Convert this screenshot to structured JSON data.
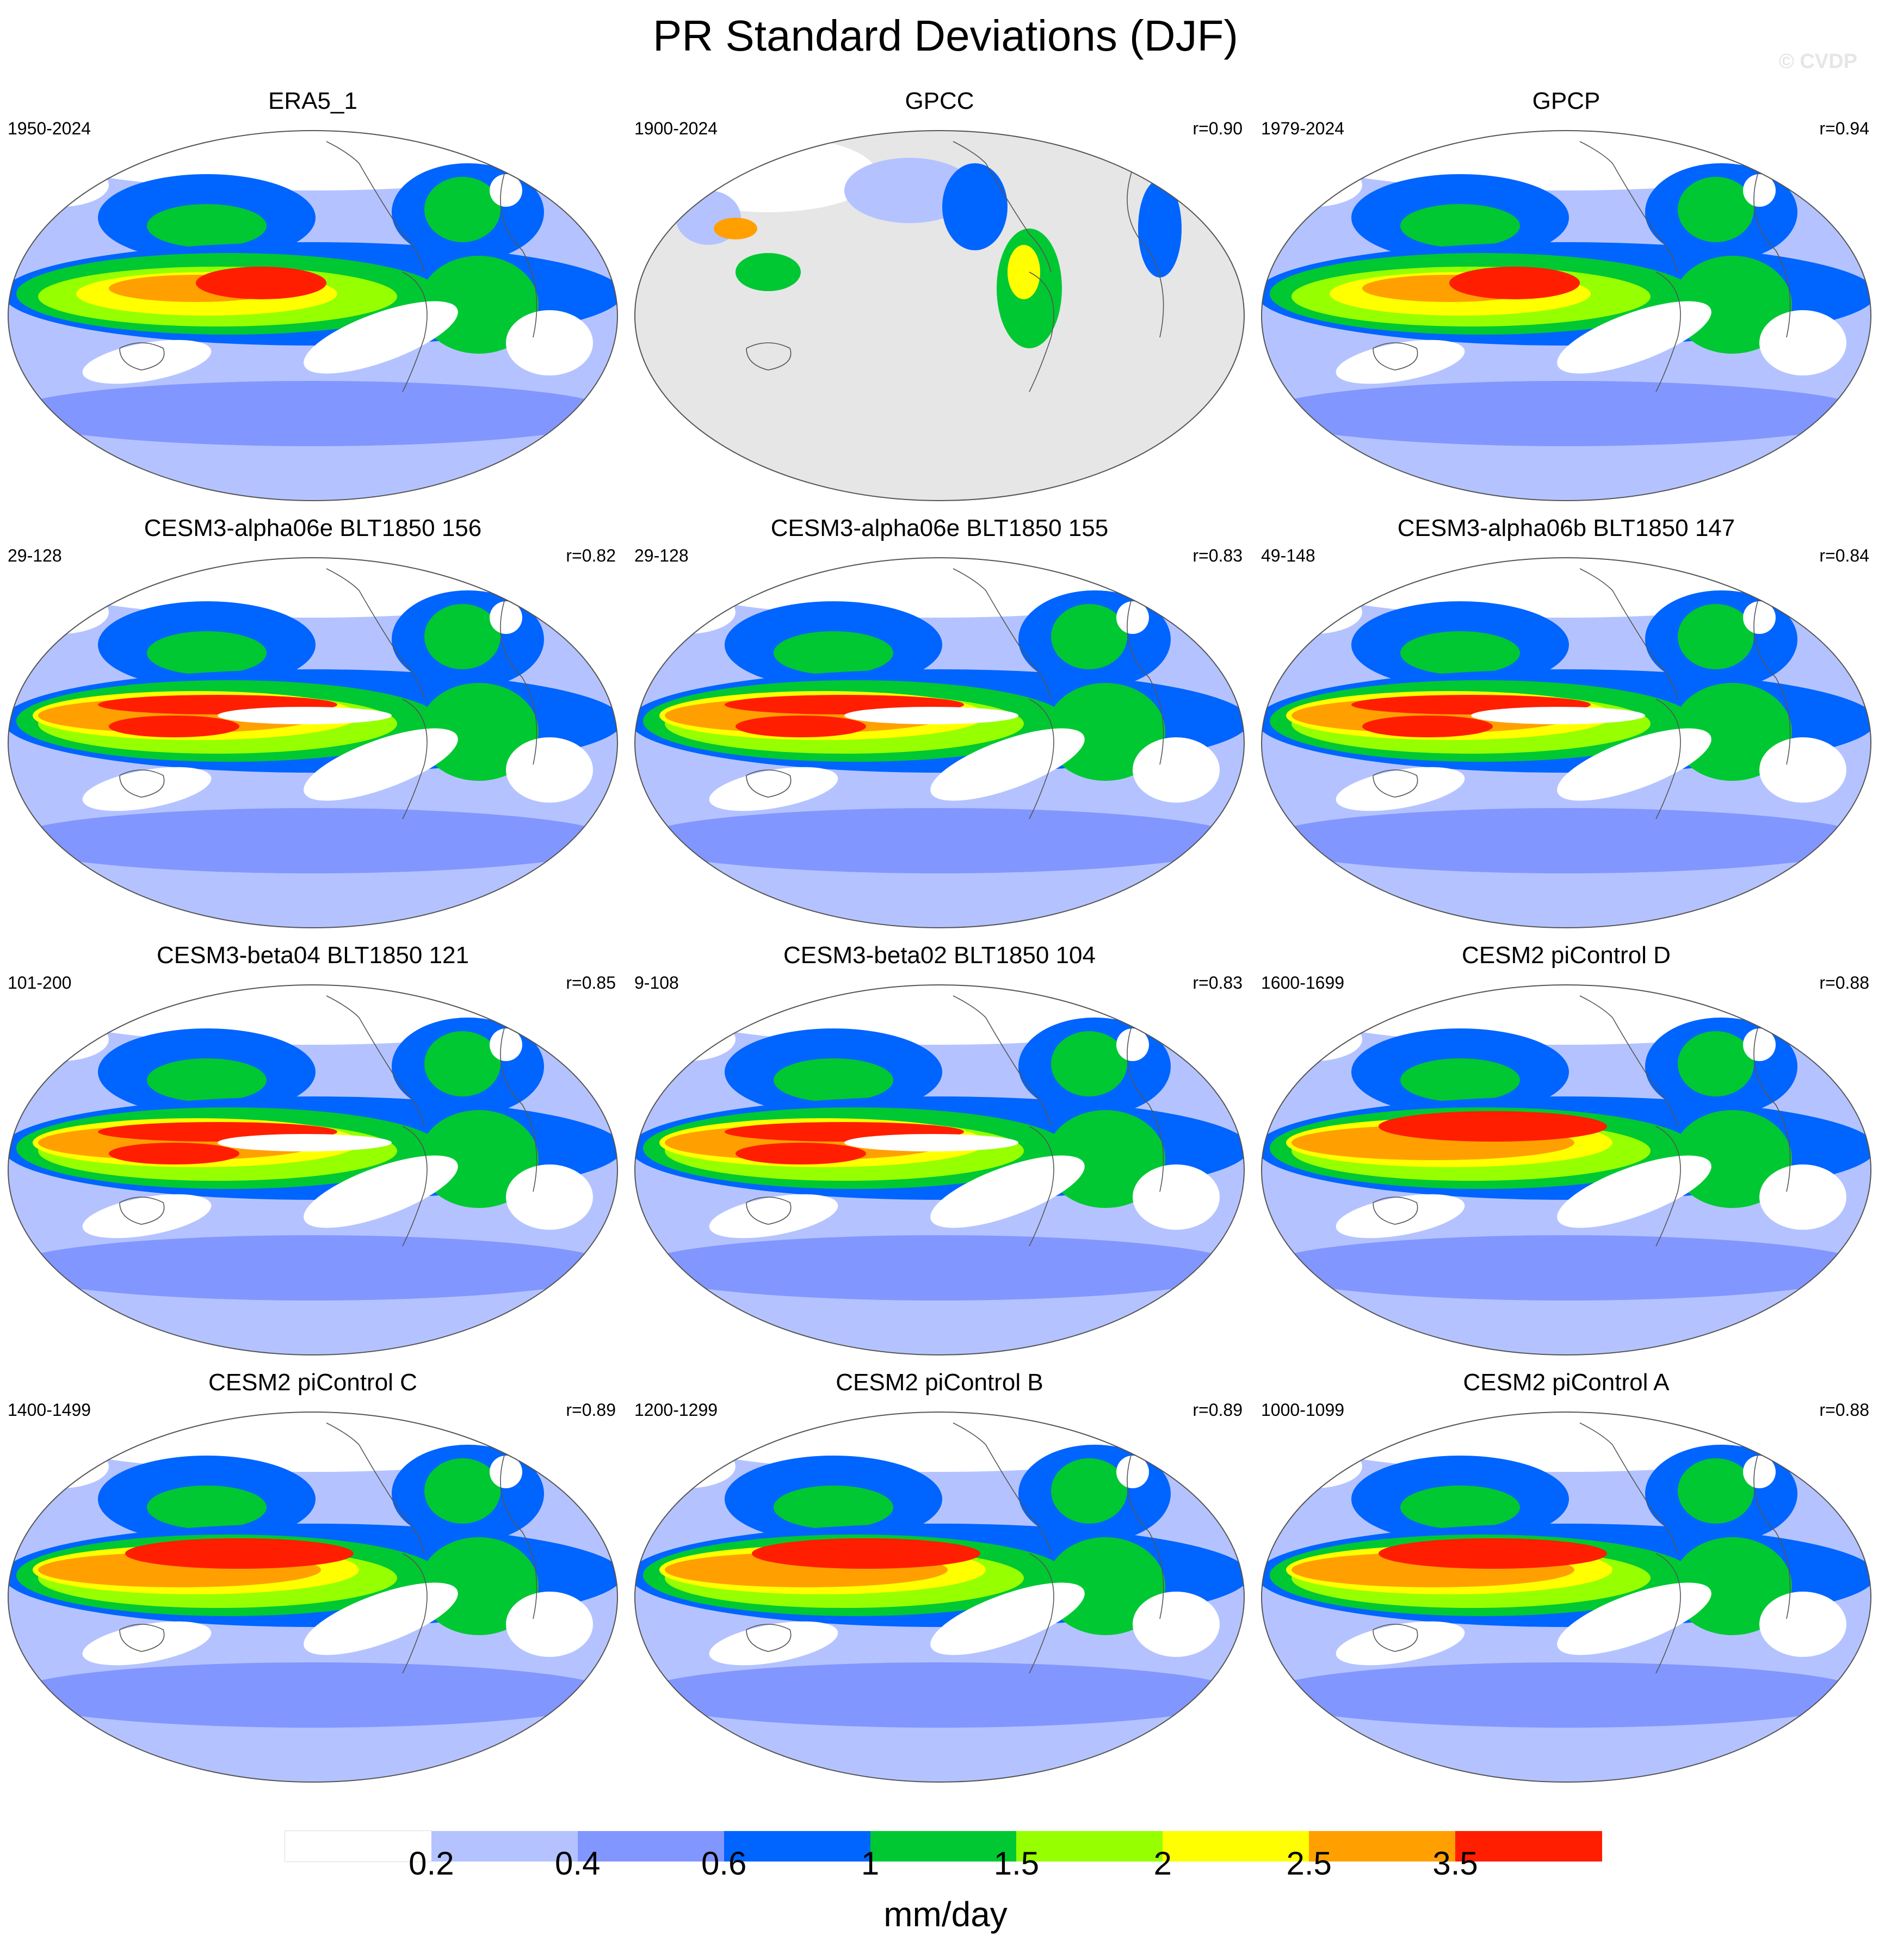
{
  "title": "PR Standard Deviations (DJF)",
  "watermark": "© CVDP",
  "colors": {
    "levels": [
      "#ffffff",
      "#b4c3ff",
      "#8296ff",
      "#0064ff",
      "#00c832",
      "#96ff00",
      "#ffff00",
      "#ffa000",
      "#ff1e00"
    ],
    "land_mask": "#e6e6e6",
    "coast": "#555555"
  },
  "panels": [
    {
      "title": "ERA5_1",
      "years": "1950-2024",
      "r": "",
      "variant": "obs"
    },
    {
      "title": "GPCC",
      "years": "1900-2024",
      "r": "r=0.90",
      "variant": "land"
    },
    {
      "title": "GPCP",
      "years": "1979-2024",
      "r": "r=0.94",
      "variant": "obs2"
    },
    {
      "title": "CESM3-alpha06e BLT1850 156",
      "years": "29-128",
      "r": "r=0.82",
      "variant": "cesm3"
    },
    {
      "title": "CESM3-alpha06e BLT1850 155",
      "years": "29-128",
      "r": "r=0.83",
      "variant": "cesm3"
    },
    {
      "title": "CESM3-alpha06b BLT1850 147",
      "years": "49-148",
      "r": "r=0.84",
      "variant": "cesm3"
    },
    {
      "title": "CESM3-beta04 BLT1850 121",
      "years": "101-200",
      "r": "r=0.85",
      "variant": "cesm3"
    },
    {
      "title": "CESM3-beta02 BLT1850 104",
      "years": "9-108",
      "r": "r=0.83",
      "variant": "cesm3"
    },
    {
      "title": "CESM2 piControl D",
      "years": "1600-1699",
      "r": "r=0.88",
      "variant": "cesm2"
    },
    {
      "title": "CESM2 piControl C",
      "years": "1400-1499",
      "r": "r=0.89",
      "variant": "cesm2"
    },
    {
      "title": "CESM2 piControl B",
      "years": "1200-1299",
      "r": "r=0.89",
      "variant": "cesm2"
    },
    {
      "title": "CESM2 piControl A",
      "years": "1000-1099",
      "r": "r=0.88",
      "variant": "cesm2"
    }
  ],
  "colorbar": {
    "ticks": [
      "0.2",
      "0.4",
      "0.6",
      "1",
      "1.5",
      "2",
      "2.5",
      "3.5"
    ],
    "units": "mm/day"
  }
}
